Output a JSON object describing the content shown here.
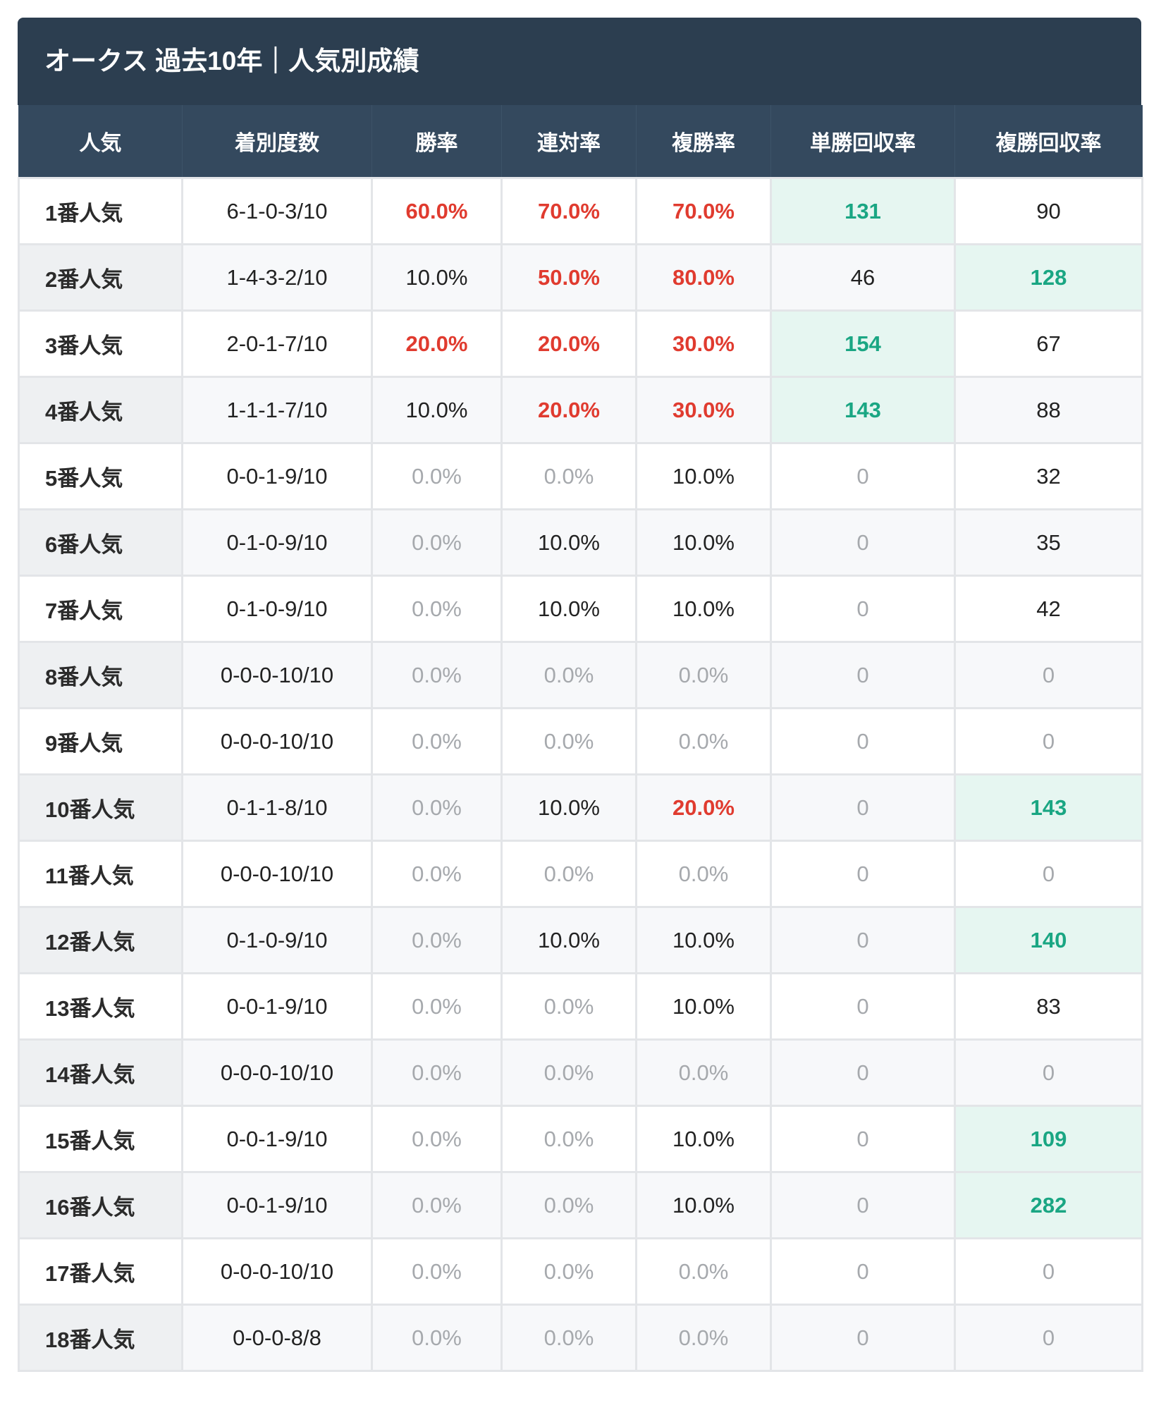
{
  "header": {
    "title": "オークス 過去10年｜人気別成績"
  },
  "table": {
    "columns": [
      "人気",
      "着別度数",
      "勝率",
      "連対率",
      "複勝率",
      "単勝回収率",
      "複勝回収率"
    ],
    "rows": [
      [
        "1番人気",
        "6-1-0-3/10",
        "60.0%",
        "70.0%",
        "70.0%",
        "131",
        "90"
      ],
      [
        "2番人気",
        "1-4-3-2/10",
        "10.0%",
        "50.0%",
        "80.0%",
        "46",
        "128"
      ],
      [
        "3番人気",
        "2-0-1-7/10",
        "20.0%",
        "20.0%",
        "30.0%",
        "154",
        "67"
      ],
      [
        "4番人気",
        "1-1-1-7/10",
        "10.0%",
        "20.0%",
        "30.0%",
        "143",
        "88"
      ],
      [
        "5番人気",
        "0-0-1-9/10",
        "0.0%",
        "0.0%",
        "10.0%",
        "0",
        "32"
      ],
      [
        "6番人気",
        "0-1-0-9/10",
        "0.0%",
        "10.0%",
        "10.0%",
        "0",
        "35"
      ],
      [
        "7番人気",
        "0-1-0-9/10",
        "0.0%",
        "10.0%",
        "10.0%",
        "0",
        "42"
      ],
      [
        "8番人気",
        "0-0-0-10/10",
        "0.0%",
        "0.0%",
        "0.0%",
        "0",
        "0"
      ],
      [
        "9番人気",
        "0-0-0-10/10",
        "0.0%",
        "0.0%",
        "0.0%",
        "0",
        "0"
      ],
      [
        "10番人気",
        "0-1-1-8/10",
        "0.0%",
        "10.0%",
        "20.0%",
        "0",
        "143"
      ],
      [
        "11番人気",
        "0-0-0-10/10",
        "0.0%",
        "0.0%",
        "0.0%",
        "0",
        "0"
      ],
      [
        "12番人気",
        "0-1-0-9/10",
        "0.0%",
        "10.0%",
        "10.0%",
        "0",
        "140"
      ],
      [
        "13番人気",
        "0-0-1-9/10",
        "0.0%",
        "0.0%",
        "10.0%",
        "0",
        "83"
      ],
      [
        "14番人気",
        "0-0-0-10/10",
        "0.0%",
        "0.0%",
        "0.0%",
        "0",
        "0"
      ],
      [
        "15番人気",
        "0-0-1-9/10",
        "0.0%",
        "0.0%",
        "10.0%",
        "0",
        "109"
      ],
      [
        "16番人気",
        "0-0-1-9/10",
        "0.0%",
        "0.0%",
        "10.0%",
        "0",
        "282"
      ],
      [
        "17番人気",
        "0-0-0-10/10",
        "0.0%",
        "0.0%",
        "0.0%",
        "0",
        "0"
      ],
      [
        "18番人気",
        "0-0-0-8/8",
        "0.0%",
        "0.0%",
        "0.0%",
        "0",
        "0"
      ]
    ]
  }
}
